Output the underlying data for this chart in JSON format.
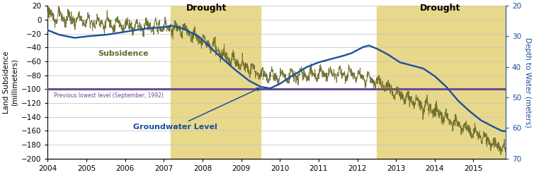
{
  "title_left": "Land Subsidence\n(millimeters)",
  "title_right": "Depth to Water (meters)",
  "xlim": [
    2004.0,
    2015.83
  ],
  "ylim_left": [
    -200,
    20
  ],
  "ylim_right": [
    70,
    20
  ],
  "yticks_left": [
    20,
    0,
    -20,
    -40,
    -60,
    -80,
    -100,
    -120,
    -140,
    -160,
    -180,
    -200
  ],
  "yticks_right": [
    20,
    30,
    40,
    50,
    60,
    70
  ],
  "xticks": [
    2004,
    2005,
    2006,
    2007,
    2008,
    2009,
    2010,
    2011,
    2012,
    2013,
    2014,
    2015
  ],
  "drought1_start": 2007.17,
  "drought1_end": 2009.5,
  "drought2_start": 2012.5,
  "drought2_end": 2015.83,
  "drought_color": "#e8d88a",
  "drought_alpha": 1.0,
  "reference_line_y": -100,
  "reference_line_color": "#6a4c93",
  "reference_line_label": "Previous lowest level (September, 1992)",
  "subsidence_color": "#6b6b2a",
  "groundwater_color": "#1a4f9c",
  "background_color": "#ffffff",
  "grid_color": "#c8c8c8",
  "label_subsidence": "Subsidence",
  "label_groundwater": "Groundwater Level",
  "label_drought": "Drought"
}
